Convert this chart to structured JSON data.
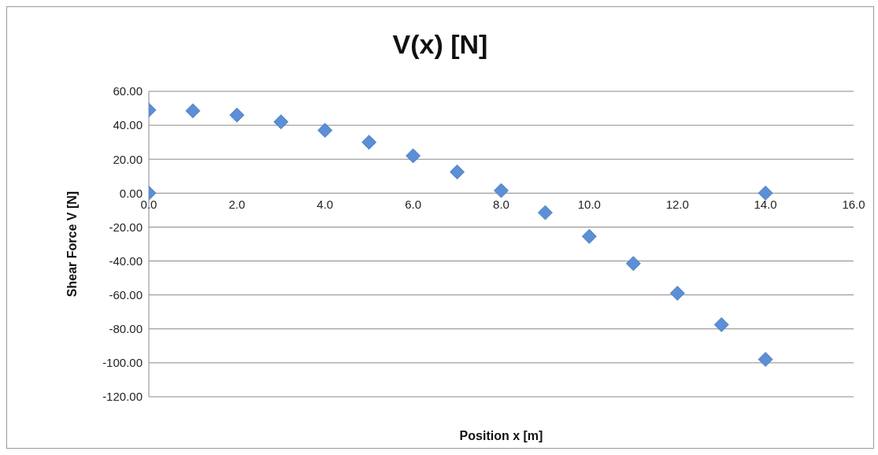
{
  "chart_data": {
    "type": "scatter",
    "title": "V(x) [N]",
    "xlabel": "Position x [m]",
    "ylabel": "Shear Force V [N]",
    "x": [
      0,
      0,
      1,
      2,
      3,
      4,
      5,
      6,
      7,
      8,
      9,
      10,
      11,
      12,
      13,
      14,
      14
    ],
    "series": [
      {
        "color": "#5b8fd6",
        "values": [
          49,
          0,
          48.5,
          46,
          42,
          37,
          30,
          22,
          12.5,
          1.5,
          -11.5,
          -25.5,
          -41.5,
          -59,
          -77.5,
          -98,
          0
        ]
      }
    ],
    "xlim": [
      0,
      16
    ],
    "xticks": [
      {
        "value": 0,
        "label": "0.0"
      },
      {
        "value": 2,
        "label": "2.0"
      },
      {
        "value": 4,
        "label": "4.0"
      },
      {
        "value": 6,
        "label": "6.0"
      },
      {
        "value": 8,
        "label": "8.0"
      },
      {
        "value": 10,
        "label": "10.0"
      },
      {
        "value": 12,
        "label": "12.0"
      },
      {
        "value": 14,
        "label": "14.0"
      },
      {
        "value": 16,
        "label": "16.0"
      }
    ],
    "ylim": [
      -120,
      60
    ],
    "yticks": [
      {
        "value": -120,
        "label": "-120.00"
      },
      {
        "value": -100,
        "label": "-100.00"
      },
      {
        "value": -80,
        "label": "-80.00"
      },
      {
        "value": -60,
        "label": "-60.00"
      },
      {
        "value": -40,
        "label": "-40.00"
      },
      {
        "value": -20,
        "label": "-20.00"
      },
      {
        "value": 0,
        "label": "0.00"
      },
      {
        "value": 20,
        "label": "20.00"
      },
      {
        "value": 40,
        "label": "40.00"
      },
      {
        "value": 60,
        "label": "60.00"
      }
    ],
    "grid": "y",
    "marker": "diamond"
  }
}
